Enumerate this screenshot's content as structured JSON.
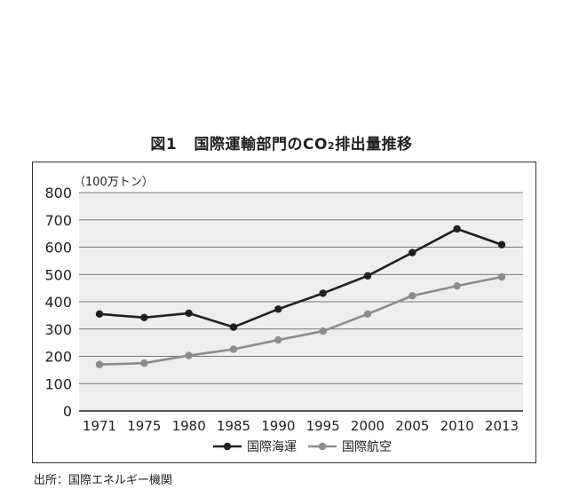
{
  "figure": {
    "title_prefix": "図1",
    "title_main": "国際運輸部門のCO",
    "title_sub": "2",
    "title_suffix": "排出量推移",
    "source": "出所：国際エネルギー機関"
  },
  "colors": {
    "series_1": "#231f20",
    "series_2": "#8c8c8c",
    "plot_background": "#eeeeee",
    "gridline": "#555555"
  },
  "chart_data": {
    "type": "line",
    "ylabel": "（100万トン）",
    "xlabel": "",
    "categories": [
      "1971",
      "1975",
      "1980",
      "1985",
      "1990",
      "1995",
      "2000",
      "2005",
      "2010",
      "2013"
    ],
    "ylim": [
      0,
      800
    ],
    "yticks": [
      0,
      100,
      200,
      300,
      400,
      500,
      600,
      700,
      800
    ],
    "grid": true,
    "legend": "bottom",
    "series": [
      {
        "name": "国際海運",
        "values": [
          355,
          342,
          358,
          307,
          373,
          431,
          495,
          580,
          667,
          609
        ]
      },
      {
        "name": "国際航空",
        "values": [
          170,
          175,
          203,
          226,
          260,
          292,
          355,
          422,
          458,
          491
        ]
      }
    ]
  }
}
